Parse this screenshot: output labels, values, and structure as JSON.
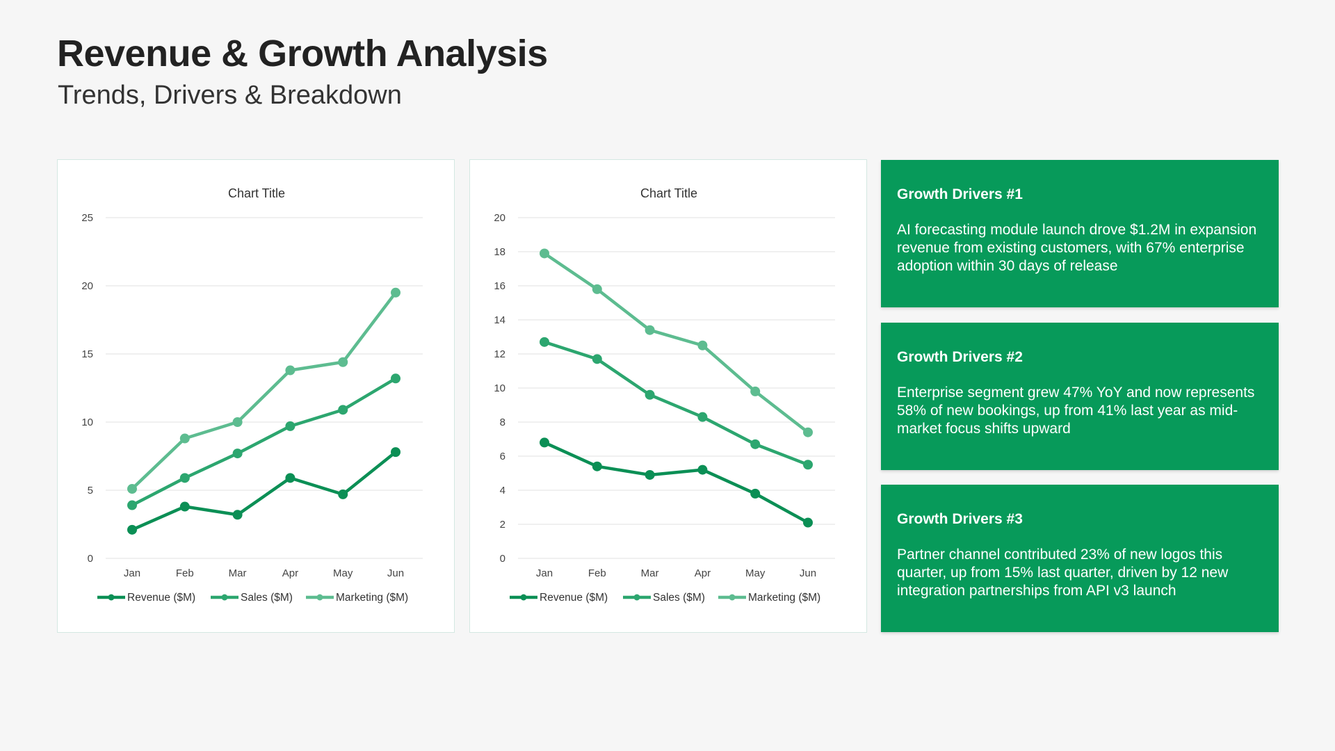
{
  "header": {
    "title": "Revenue & Growth Analysis",
    "subtitle": "Trends, Drivers & Breakdown"
  },
  "colors": {
    "revenue": "#0b8f55",
    "sales": "#2ca66f",
    "marketing": "#5dbc90",
    "card": "#079a5a"
  },
  "chart_data": [
    {
      "type": "line",
      "title": "Chart Title",
      "categories": [
        "Jan",
        "Feb",
        "Mar",
        "Apr",
        "May",
        "Jun"
      ],
      "ylim": [
        0,
        25
      ],
      "yticks": [
        0,
        5,
        10,
        15,
        20,
        25
      ],
      "grid": true,
      "legend": "bottom",
      "series": [
        {
          "name": "Revenue ($M)",
          "values": [
            2.1,
            3.8,
            3.2,
            5.9,
            4.7,
            7.8
          ]
        },
        {
          "name": "Sales ($M)",
          "values": [
            3.9,
            5.9,
            7.7,
            9.7,
            10.9,
            13.2
          ]
        },
        {
          "name": "Marketing ($M)",
          "values": [
            5.1,
            8.8,
            10.0,
            13.8,
            14.4,
            19.5
          ]
        }
      ]
    },
    {
      "type": "line",
      "title": "Chart Title",
      "categories": [
        "Jan",
        "Feb",
        "Mar",
        "Apr",
        "May",
        "Jun"
      ],
      "ylim": [
        0,
        20
      ],
      "yticks": [
        0,
        2,
        4,
        6,
        8,
        10,
        12,
        14,
        16,
        18,
        20
      ],
      "grid": true,
      "legend": "bottom",
      "series": [
        {
          "name": "Revenue ($M)",
          "values": [
            6.8,
            5.4,
            4.9,
            5.2,
            3.8,
            2.1
          ]
        },
        {
          "name": "Sales ($M)",
          "values": [
            12.7,
            11.7,
            9.6,
            8.3,
            6.7,
            5.5
          ]
        },
        {
          "name": "Marketing ($M)",
          "values": [
            17.9,
            15.8,
            13.4,
            12.5,
            9.8,
            7.4
          ]
        }
      ]
    }
  ],
  "cards": [
    {
      "title": "Growth Drivers #1",
      "body": "AI forecasting module launch drove $1.2M in expansion revenue from existing customers, with 67% enterprise adoption within 30 days of release"
    },
    {
      "title": "Growth Drivers #2",
      "body": "Enterprise segment grew 47% YoY and now represents 58% of new bookings, up from 41% last year as mid-market focus shifts upward"
    },
    {
      "title": "Growth Drivers #3",
      "body": "Partner channel contributed 23% of new logos this quarter, up from 15% last quarter, driven by 12 new integration partnerships from API v3 launch"
    }
  ]
}
